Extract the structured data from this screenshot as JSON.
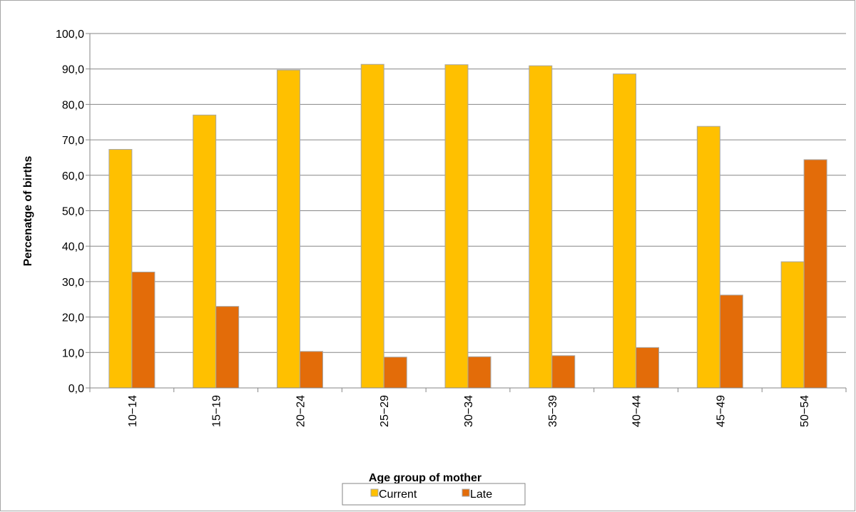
{
  "chart_data": {
    "type": "bar",
    "title": "",
    "xlabel": "Age group of mother",
    "ylabel": "Percenatge of births",
    "categories": [
      "10−14",
      "15−19",
      "20−24",
      "25−29",
      "30−34",
      "35−39",
      "40−44",
      "45−49",
      "50−54"
    ],
    "series": [
      {
        "name": "Current",
        "color": "#ffc000",
        "values": [
          67.3,
          77.0,
          89.7,
          91.3,
          91.2,
          90.9,
          88.6,
          73.8,
          35.6
        ]
      },
      {
        "name": "Late",
        "color": "#e36c09",
        "values": [
          32.7,
          23.0,
          10.3,
          8.7,
          8.8,
          9.1,
          11.4,
          26.2,
          64.4
        ]
      }
    ],
    "ylim": [
      0,
      100
    ],
    "yticks": [
      "0,0",
      "10,0",
      "20,0",
      "30,0",
      "40,0",
      "50,0",
      "60,0",
      "70,0",
      "80,0",
      "90,0",
      "100,0"
    ],
    "grid": true,
    "legend_position": "bottom"
  }
}
